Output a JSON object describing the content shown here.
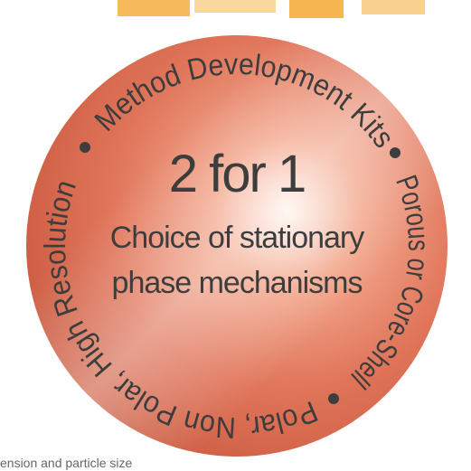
{
  "badge": {
    "headline": "2 for 1",
    "subline": [
      "Choice of stationary",
      "phase mechanisms"
    ],
    "ring": [
      "Method Development Kits",
      "Porous or Core-Shell",
      "Polar, Non Polar, High Resolution"
    ]
  },
  "footer_fragment": "ension and particle size"
}
